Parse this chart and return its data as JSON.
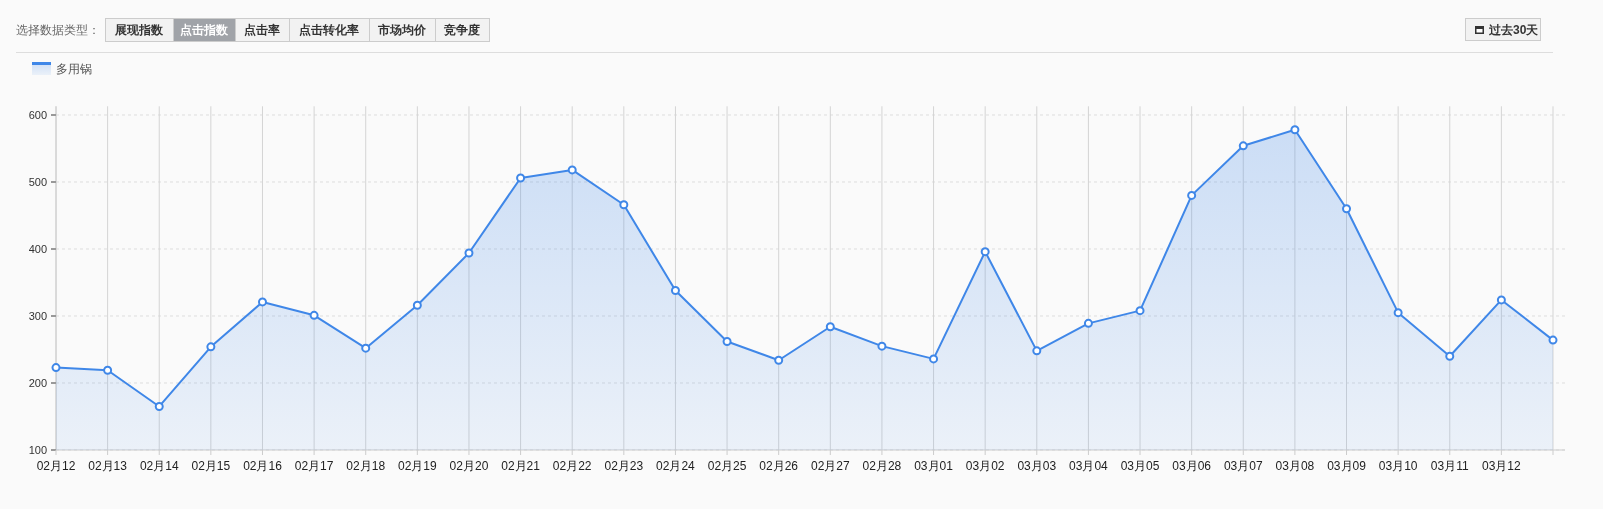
{
  "chart_data": {
    "type": "area",
    "categories": [
      "02月12",
      "02月13",
      "02月14",
      "02月15",
      "02月16",
      "02月17",
      "02月18",
      "02月19",
      "02月20",
      "02月21",
      "02月22",
      "02月23",
      "02月24",
      "02月25",
      "02月26",
      "02月27",
      "02月28",
      "03月01",
      "03月02",
      "03月03",
      "03月04",
      "03月05",
      "03月06",
      "03月07",
      "03月08",
      "03月09",
      "03月10",
      "03月11",
      "03月12",
      null
    ],
    "series": [
      {
        "name": "多用锅",
        "color": "#3f87e8",
        "values": [
          223,
          219,
          165,
          254,
          321,
          301,
          252,
          316,
          394,
          506,
          518,
          466,
          338,
          262,
          234,
          284,
          255,
          236,
          396,
          248,
          289,
          308,
          480,
          554,
          578,
          460,
          305,
          240,
          324,
          264
        ]
      }
    ],
    "ylim": [
      100,
      613
    ],
    "yticks": [
      100,
      200,
      300,
      400,
      500,
      600
    ],
    "grid": true,
    "legend": "top left",
    "marker": "circle",
    "annotations": [
      "选择数据类型：",
      "展现指数",
      "点击指数",
      "点击率",
      "点击转化率",
      "市场均价",
      "竞争度",
      "过去30天"
    ]
  }
}
